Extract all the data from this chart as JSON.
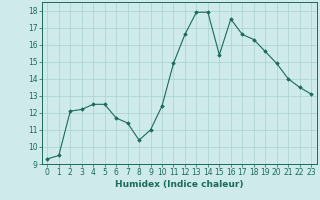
{
  "x": [
    0,
    1,
    2,
    3,
    4,
    5,
    6,
    7,
    8,
    9,
    10,
    11,
    12,
    13,
    14,
    15,
    16,
    17,
    18,
    19,
    20,
    21,
    22,
    23
  ],
  "y": [
    9.3,
    9.5,
    12.1,
    12.2,
    12.5,
    12.5,
    11.7,
    11.4,
    10.4,
    11.0,
    12.4,
    14.9,
    16.6,
    17.9,
    17.9,
    15.4,
    17.5,
    16.6,
    16.3,
    15.6,
    14.9,
    14.0,
    13.5,
    13.1
  ],
  "xlabel": "Humidex (Indice chaleur)",
  "xlim": [
    -0.5,
    23.5
  ],
  "ylim": [
    9,
    18.5
  ],
  "yticks": [
    9,
    10,
    11,
    12,
    13,
    14,
    15,
    16,
    17,
    18
  ],
  "xticks": [
    0,
    1,
    2,
    3,
    4,
    5,
    6,
    7,
    8,
    9,
    10,
    11,
    12,
    13,
    14,
    15,
    16,
    17,
    18,
    19,
    20,
    21,
    22,
    23
  ],
  "line_color": "#1a6b5a",
  "marker": "D",
  "marker_size": 1.8,
  "bg_color": "#ceeaea",
  "grid_color": "#aacfcf",
  "label_fontsize": 6.5,
  "tick_fontsize": 5.5
}
